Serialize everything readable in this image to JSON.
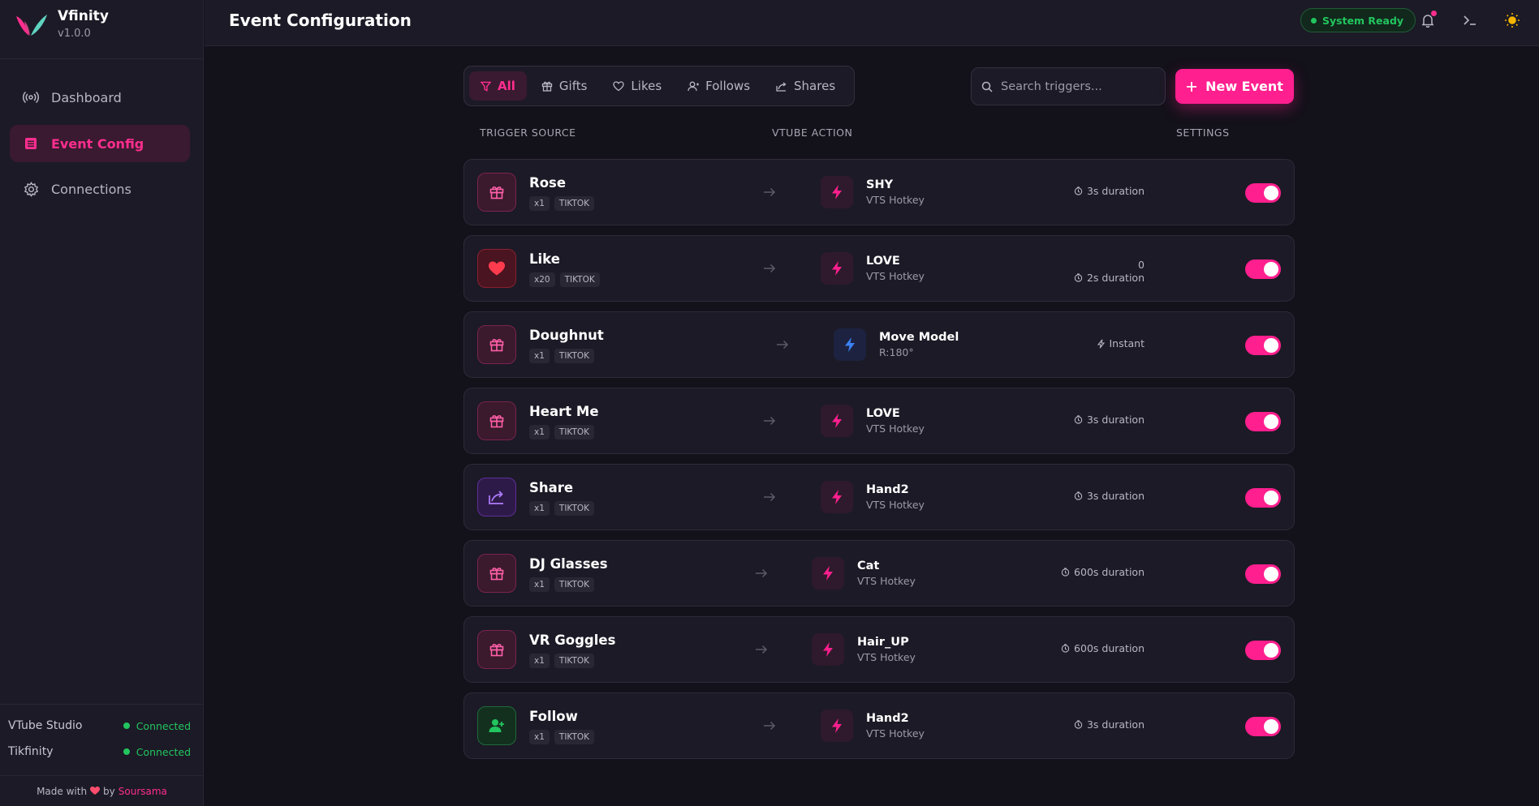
{
  "app": {
    "name": "Vfinity",
    "version": "v1.0.0"
  },
  "sidebar": {
    "items": [
      {
        "label": "Dashboard",
        "icon": "broadcast-icon"
      },
      {
        "label": "Event Config",
        "icon": "list-icon"
      },
      {
        "label": "Connections",
        "icon": "gear-icon"
      }
    ],
    "status": [
      {
        "label": "VTube Studio",
        "value": "Connected"
      },
      {
        "label": "Tikfinity",
        "value": "Connected"
      }
    ],
    "footer": {
      "made_with": "Made with",
      "by": "by",
      "author": "Soursama"
    }
  },
  "header": {
    "title": "Event Configuration",
    "status": "System Ready"
  },
  "filters": [
    {
      "label": "All"
    },
    {
      "label": "Gifts"
    },
    {
      "label": "Likes"
    },
    {
      "label": "Follows"
    },
    {
      "label": "Shares"
    }
  ],
  "search": {
    "placeholder": "Search triggers..."
  },
  "new_button": "New Event",
  "columns": {
    "trigger": "TRIGGER SOURCE",
    "action": "VTUBE ACTION",
    "settings": "SETTINGS"
  },
  "events": [
    {
      "name": "Rose",
      "qty": "x1",
      "platform": "TIKTOK",
      "type": "gift",
      "action": "SHY",
      "action_sub": "VTS Hotkey",
      "duration": "3s duration",
      "enabled": true
    },
    {
      "name": "Like",
      "qty": "x20",
      "platform": "TIKTOK",
      "type": "like",
      "action": "LOVE",
      "action_sub": "VTS Hotkey",
      "count": "0",
      "duration": "2s duration",
      "enabled": true
    },
    {
      "name": "Doughnut",
      "qty": "x1",
      "platform": "TIKTOK",
      "type": "gift",
      "action": "Move Model",
      "action_sub": "R:180°",
      "duration": "Instant",
      "enabled": true
    },
    {
      "name": "Heart Me",
      "qty": "x1",
      "platform": "TIKTOK",
      "type": "gift",
      "action": "LOVE",
      "action_sub": "VTS Hotkey",
      "duration": "3s duration",
      "enabled": true
    },
    {
      "name": "Share",
      "qty": "x1",
      "platform": "TIKTOK",
      "type": "share",
      "action": "Hand2",
      "action_sub": "VTS Hotkey",
      "duration": "3s duration",
      "enabled": true
    },
    {
      "name": "DJ Glasses",
      "qty": "x1",
      "platform": "TIKTOK",
      "type": "gift",
      "action": "Cat",
      "action_sub": "VTS Hotkey",
      "duration": "600s duration",
      "enabled": true
    },
    {
      "name": "VR Goggles",
      "qty": "x1",
      "platform": "TIKTOK",
      "type": "gift",
      "action": "Hair_UP",
      "action_sub": "VTS Hotkey",
      "duration": "600s duration",
      "enabled": true
    },
    {
      "name": "Follow",
      "qty": "x1",
      "platform": "TIKTOK",
      "type": "follow",
      "action": "Hand2",
      "action_sub": "VTS Hotkey",
      "duration": "3s duration",
      "enabled": true
    }
  ],
  "colors": {
    "accent": "#ff1f8e",
    "success": "#22c55e",
    "background": "#13111a",
    "panel": "#1c1a26"
  }
}
